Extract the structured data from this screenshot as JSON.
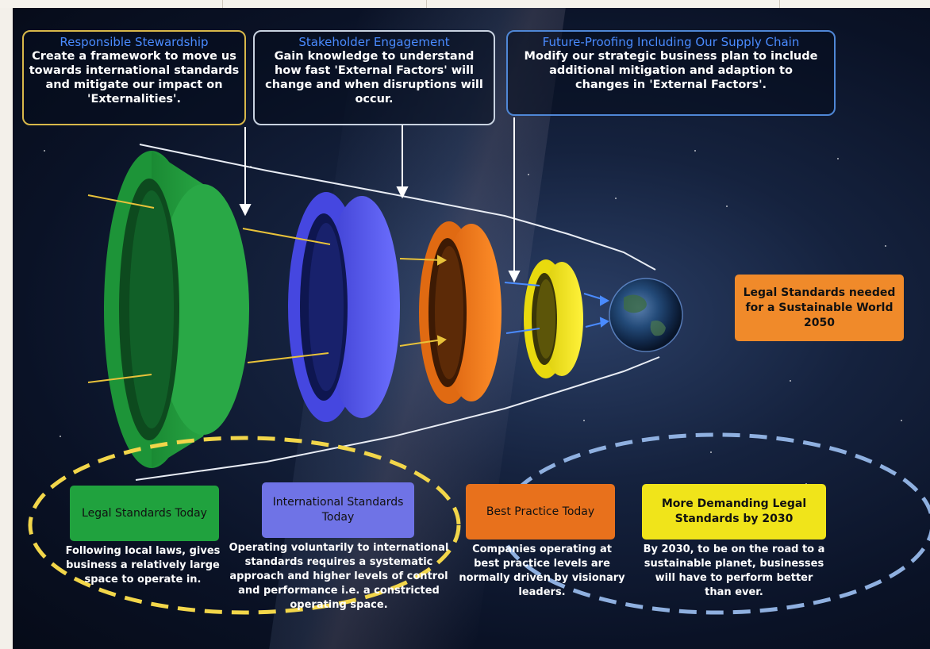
{
  "callouts": {
    "stewardship": {
      "title": "Responsible Stewardship",
      "body": "Create a framework to move us towards international standards and mitigate our impact on 'Externalities'."
    },
    "engagement": {
      "title": "Stakeholder Engagement",
      "body": "Gain knowledge to understand how fast 'External Factors' will change and when disruptions will occur."
    },
    "future_proofing": {
      "title": "Future-Proofing Including Our Supply Chain",
      "body": "Modify our strategic business plan to include additional mitigation and adaption to changes in 'External Factors'."
    }
  },
  "goal": {
    "label": "Legal Standards needed for a Sustainable World 2050"
  },
  "stages": [
    {
      "label": "Legal Standards Today",
      "description": "Following local laws, gives business a relatively large space to operate in."
    },
    {
      "label": "International Standards Today",
      "description": "Operating voluntarily to international standards requires a systematic approach and higher levels of control and performance i.e. a constricted operating space."
    },
    {
      "label": "Best Practice Today",
      "description": "Companies operating at best practice levels are normally driven by visionary leaders."
    },
    {
      "label": "More Demanding Legal Standards by 2030",
      "description": "By 2030, to be on the road to a sustainable planet, businesses will have to perform better than ever."
    }
  ],
  "colors": {
    "green": "#1f9e3a",
    "blue": "#5a5cf0",
    "orange": "#f07a1a",
    "yellow": "#f2e414",
    "callout_title": "#4a8bff",
    "stewardship_border": "#d8b84a",
    "engagement_border": "#c8d2e0",
    "future_border": "#4f87d6",
    "yellow_dashed": "#f2d64a",
    "blue_dashed": "#8fb0e0"
  },
  "icons": [
    "earth-icon"
  ]
}
